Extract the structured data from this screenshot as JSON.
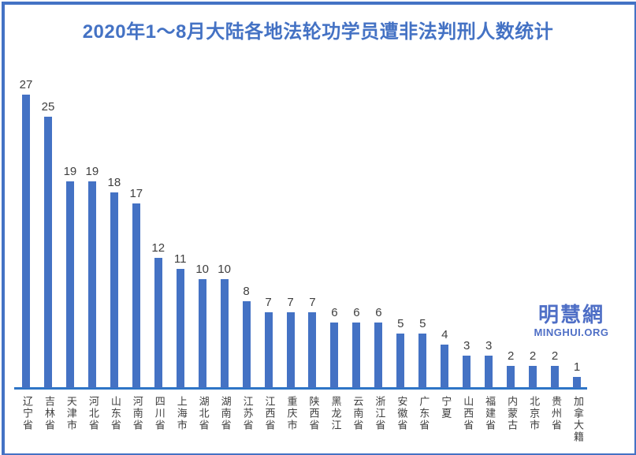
{
  "title": "2020年1～8月大陆各地法轮功学员遭非法判刑人数统计",
  "watermark": {
    "name_cn": "明慧網",
    "name_en": "MINGHUI.ORG"
  },
  "colors": {
    "background": "#FFFFFF",
    "bar": "#4472C4",
    "title": "#4472C4",
    "border": "#4472C4",
    "axis": "#2E75C6",
    "label": "#3F3F3F",
    "logo": "#4F6FC6"
  },
  "chart_data": {
    "type": "bar",
    "title": "2020年1～8月大陆各地法轮功学员遭非法判刑人数统计",
    "categories": [
      "辽宁省",
      "吉林省",
      "天津市",
      "河北省",
      "山东省",
      "河南省",
      "四川省",
      "上海市",
      "湖北省",
      "湖南省",
      "江苏省",
      "江西省",
      "重庆市",
      "陕西省",
      "黑龙江",
      "云南省",
      "浙江省",
      "安徽省",
      "广东省",
      "宁夏",
      "山西省",
      "福建省",
      "内蒙古",
      "北京市",
      "贵州省",
      "加拿大籍",
      ""
    ],
    "values": [
      27,
      25,
      19,
      19,
      18,
      17,
      12,
      11,
      10,
      10,
      8,
      7,
      7,
      7,
      6,
      6,
      6,
      5,
      5,
      4,
      3,
      3,
      2,
      2,
      2,
      1
    ],
    "xlabel": "",
    "ylabel": "",
    "ylim": [
      0,
      29
    ],
    "grid": false,
    "legend": false,
    "data_labels": true,
    "orientation": "vertical",
    "category_label_orientation": "vertical"
  }
}
